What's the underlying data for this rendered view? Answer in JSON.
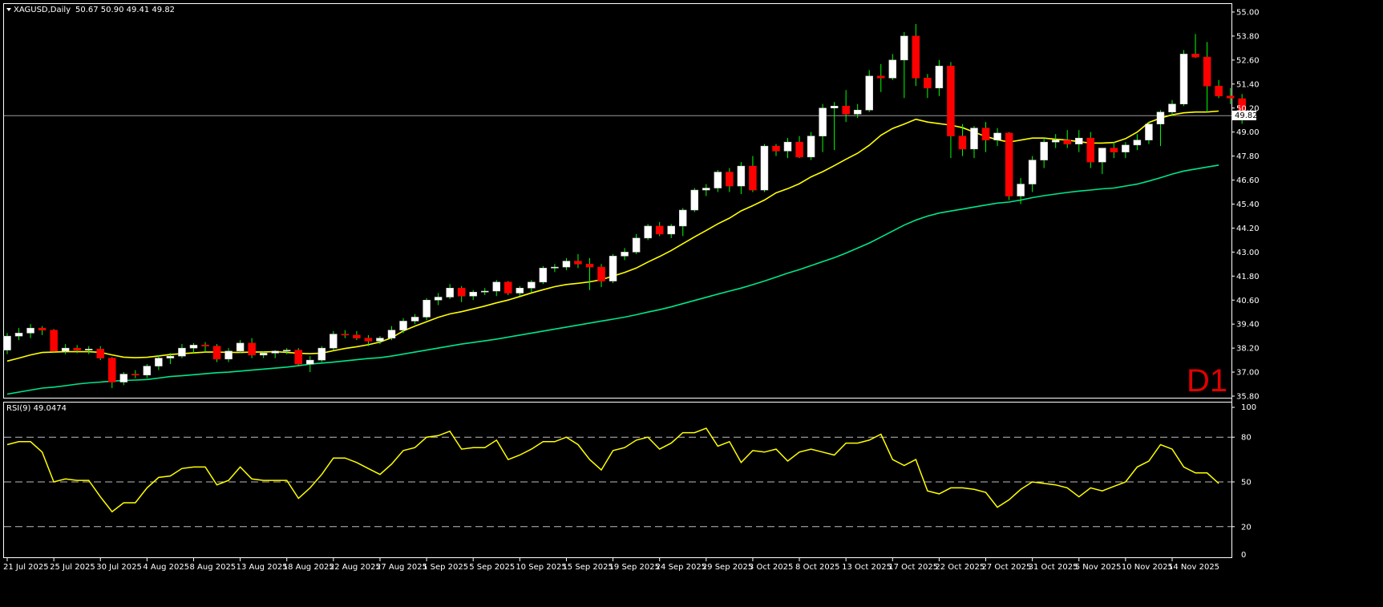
{
  "chart_data": [
    {
      "type": "candlestick",
      "symbol_title": "XAGUSD,Daily",
      "ohlc_header": "50.67 50.90 49.41 49.82",
      "timeframe_label": "D1",
      "current_price": "49.82",
      "price_axis_ticks": [
        "55.00",
        "53.80",
        "52.60",
        "51.40",
        "50.20",
        "49.00",
        "47.80",
        "46.60",
        "45.40",
        "44.20",
        "43.00",
        "41.80",
        "40.60",
        "39.40",
        "38.20",
        "37.00",
        "35.80"
      ],
      "ylim": [
        35.8,
        55.0
      ],
      "date_ticks": [
        "21 Jul 2025",
        "25 Jul 2025",
        "30 Jul 2025",
        "4 Aug 2025",
        "8 Aug 2025",
        "13 Aug 2025",
        "18 Aug 2025",
        "22 Aug 2025",
        "27 Aug 2025",
        "1 Sep 2025",
        "5 Sep 2025",
        "10 Sep 2025",
        "15 Sep 2025",
        "19 Sep 2025",
        "24 Sep 2025",
        "29 Sep 2025",
        "3 Oct 2025",
        "8 Oct 2025",
        "13 Oct 2025",
        "17 Oct 2025",
        "22 Oct 2025",
        "27 Oct 2025",
        "31 Oct 2025",
        "5 Nov 2025",
        "10 Nov 2025",
        "14 Nov 2025"
      ],
      "date_tick_bar_index": [
        0,
        4,
        8,
        12,
        16,
        20,
        24,
        28,
        32,
        36,
        40,
        44,
        48,
        52,
        56,
        60,
        64,
        68,
        72,
        76,
        80,
        84,
        88,
        92,
        96,
        100
      ],
      "bull_color": "#ffffff",
      "bear_color": "#ff0000",
      "wick_color": "#00ff00",
      "candles": [
        [
          38.1,
          38.95,
          37.9,
          38.8
        ],
        [
          38.8,
          39.2,
          38.6,
          38.95
        ],
        [
          38.95,
          39.4,
          38.7,
          39.2
        ],
        [
          39.2,
          39.3,
          38.85,
          39.1
        ],
        [
          39.1,
          39.15,
          37.95,
          38.05
        ],
        [
          38.05,
          38.4,
          37.9,
          38.2
        ],
        [
          38.2,
          38.35,
          37.95,
          38.1
        ],
        [
          38.1,
          38.3,
          37.9,
          38.15
        ],
        [
          38.15,
          38.3,
          37.6,
          37.7
        ],
        [
          37.7,
          37.75,
          36.2,
          36.5
        ],
        [
          36.5,
          37.0,
          36.35,
          36.9
        ],
        [
          36.9,
          37.1,
          36.7,
          36.85
        ],
        [
          36.85,
          37.4,
          36.7,
          37.3
        ],
        [
          37.3,
          37.85,
          37.1,
          37.7
        ],
        [
          37.7,
          37.95,
          37.4,
          37.8
        ],
        [
          37.8,
          38.4,
          37.7,
          38.2
        ],
        [
          38.2,
          38.45,
          37.95,
          38.35
        ],
        [
          38.35,
          38.5,
          38.0,
          38.3
        ],
        [
          38.3,
          38.4,
          37.5,
          37.65
        ],
        [
          37.65,
          38.2,
          37.5,
          38.05
        ],
        [
          38.05,
          38.6,
          37.95,
          38.45
        ],
        [
          38.45,
          38.7,
          37.7,
          37.85
        ],
        [
          37.85,
          38.05,
          37.7,
          37.95
        ],
        [
          37.95,
          38.1,
          37.7,
          38.05
        ],
        [
          38.05,
          38.2,
          37.9,
          38.1
        ],
        [
          38.1,
          38.2,
          37.3,
          37.4
        ],
        [
          37.4,
          37.8,
          37.0,
          37.6
        ],
        [
          37.6,
          38.3,
          37.5,
          38.2
        ],
        [
          38.2,
          39.05,
          38.1,
          38.9
        ],
        [
          38.9,
          39.1,
          38.7,
          38.85
        ],
        [
          38.85,
          39.05,
          38.6,
          38.7
        ],
        [
          38.7,
          38.85,
          38.3,
          38.55
        ],
        [
          38.55,
          38.8,
          38.4,
          38.7
        ],
        [
          38.7,
          39.3,
          38.6,
          39.1
        ],
        [
          39.1,
          39.7,
          38.95,
          39.55
        ],
        [
          39.55,
          39.9,
          39.4,
          39.75
        ],
        [
          39.75,
          40.7,
          39.6,
          40.6
        ],
        [
          40.6,
          40.95,
          40.35,
          40.75
        ],
        [
          40.75,
          41.4,
          40.65,
          41.2
        ],
        [
          41.2,
          41.3,
          40.5,
          40.8
        ],
        [
          40.8,
          41.1,
          40.6,
          41.0
        ],
        [
          41.0,
          41.2,
          40.85,
          41.05
        ],
        [
          41.05,
          41.6,
          40.8,
          41.5
        ],
        [
          41.5,
          41.55,
          40.85,
          40.95
        ],
        [
          40.95,
          41.3,
          40.8,
          41.2
        ],
        [
          41.2,
          41.6,
          41.0,
          41.5
        ],
        [
          41.5,
          42.3,
          41.4,
          42.2
        ],
        [
          42.2,
          42.4,
          42.0,
          42.25
        ],
        [
          42.25,
          42.7,
          42.1,
          42.55
        ],
        [
          42.55,
          42.9,
          42.2,
          42.4
        ],
        [
          42.4,
          42.7,
          41.1,
          42.25
        ],
        [
          42.25,
          42.4,
          41.25,
          41.55
        ],
        [
          41.55,
          42.9,
          41.45,
          42.8
        ],
        [
          42.8,
          43.2,
          42.6,
          43.0
        ],
        [
          43.0,
          43.9,
          42.9,
          43.7
        ],
        [
          43.7,
          44.4,
          43.6,
          44.3
        ],
        [
          44.3,
          44.5,
          43.8,
          43.9
        ],
        [
          43.9,
          44.4,
          43.7,
          44.3
        ],
        [
          44.3,
          45.2,
          43.8,
          45.1
        ],
        [
          45.1,
          46.2,
          45.0,
          46.1
        ],
        [
          46.1,
          46.4,
          45.8,
          46.2
        ],
        [
          46.2,
          47.1,
          46.0,
          47.0
        ],
        [
          47.0,
          47.2,
          46.0,
          46.3
        ],
        [
          46.3,
          47.5,
          45.9,
          47.3
        ],
        [
          47.3,
          47.8,
          46.0,
          46.1
        ],
        [
          46.1,
          48.4,
          46.0,
          48.3
        ],
        [
          48.3,
          48.4,
          47.8,
          48.05
        ],
        [
          48.05,
          48.7,
          47.7,
          48.5
        ],
        [
          48.5,
          48.8,
          47.7,
          47.75
        ],
        [
          47.75,
          49.0,
          47.6,
          48.8
        ],
        [
          48.8,
          50.4,
          48.0,
          50.2
        ],
        [
          50.2,
          50.5,
          48.1,
          50.3
        ],
        [
          50.3,
          51.1,
          49.5,
          49.9
        ],
        [
          49.9,
          50.4,
          49.7,
          50.1
        ],
        [
          50.1,
          52.1,
          50.0,
          51.8
        ],
        [
          51.8,
          52.4,
          51.0,
          51.7
        ],
        [
          51.7,
          52.9,
          51.6,
          52.6
        ],
        [
          52.6,
          54.0,
          50.7,
          53.8
        ],
        [
          53.8,
          54.4,
          51.3,
          51.7
        ],
        [
          51.7,
          51.9,
          50.7,
          51.2
        ],
        [
          51.2,
          52.6,
          50.8,
          52.3
        ],
        [
          52.3,
          52.5,
          47.7,
          48.8
        ],
        [
          48.8,
          49.4,
          47.8,
          48.15
        ],
        [
          48.15,
          49.3,
          47.7,
          49.2
        ],
        [
          49.2,
          49.5,
          48.0,
          48.6
        ],
        [
          48.6,
          49.2,
          48.3,
          48.95
        ],
        [
          48.95,
          49.0,
          45.6,
          45.8
        ],
        [
          45.8,
          46.7,
          45.4,
          46.4
        ],
        [
          46.4,
          47.8,
          46.0,
          47.6
        ],
        [
          47.6,
          48.7,
          47.2,
          48.5
        ],
        [
          48.5,
          48.9,
          48.2,
          48.6
        ],
        [
          48.6,
          49.1,
          48.2,
          48.4
        ],
        [
          48.4,
          49.1,
          48.0,
          48.7
        ],
        [
          48.7,
          49.0,
          47.2,
          47.5
        ],
        [
          47.5,
          48.2,
          46.9,
          48.2
        ],
        [
          48.2,
          48.5,
          47.7,
          48.0
        ],
        [
          48.0,
          48.5,
          47.7,
          48.35
        ],
        [
          48.35,
          48.9,
          48.1,
          48.6
        ],
        [
          48.6,
          49.5,
          48.4,
          49.4
        ],
        [
          49.4,
          50.1,
          48.3,
          50.0
        ],
        [
          50.0,
          50.6,
          49.8,
          50.4
        ],
        [
          50.4,
          53.1,
          50.3,
          52.9
        ],
        [
          52.9,
          53.9,
          52.7,
          52.75
        ],
        [
          52.75,
          53.5,
          50.0,
          51.3
        ],
        [
          51.3,
          51.6,
          50.7,
          50.8
        ],
        [
          50.8,
          51.2,
          50.4,
          50.7
        ],
        [
          50.67,
          50.9,
          49.41,
          49.82
        ]
      ],
      "series": [
        {
          "name": "",
          "color": "#ffff00",
          "values": [
            37.55,
            37.7,
            37.86,
            37.98,
            38.0,
            38.02,
            38.02,
            38.02,
            37.99,
            37.86,
            37.75,
            37.72,
            37.74,
            37.81,
            37.88,
            37.92,
            37.96,
            38.0,
            38.0,
            37.99,
            37.98,
            38.0,
            38.01,
            38.02,
            37.99,
            37.94,
            37.92,
            37.95,
            38.07,
            38.18,
            38.27,
            38.37,
            38.5,
            38.72,
            39.06,
            39.3,
            39.52,
            39.74,
            39.91,
            40.02,
            40.16,
            40.3,
            40.46,
            40.6,
            40.78,
            40.96,
            41.12,
            41.27,
            41.38,
            41.44,
            41.51,
            41.62,
            41.8,
            41.98,
            42.2,
            42.5,
            42.78,
            43.08,
            43.42,
            43.76,
            44.08,
            44.41,
            44.7,
            45.06,
            45.32,
            45.6,
            45.96,
            46.17,
            46.42,
            46.76,
            47.02,
            47.32,
            47.64,
            47.94,
            48.34,
            48.84,
            49.18,
            49.4,
            49.64,
            49.5,
            49.42,
            49.35,
            49.22,
            49.0,
            48.78,
            48.62,
            48.5,
            48.6,
            48.7,
            48.7,
            48.64,
            48.6,
            48.52,
            48.45,
            48.45,
            48.48,
            48.67,
            49.0,
            49.48,
            49.7,
            49.86,
            49.96,
            50.0,
            50.0,
            50.05
          ]
        },
        {
          "name": "",
          "color": "#00e68a",
          "values": [
            35.9,
            36.0,
            36.1,
            36.2,
            36.25,
            36.32,
            36.4,
            36.46,
            36.5,
            36.55,
            36.58,
            36.6,
            36.63,
            36.7,
            36.78,
            36.82,
            36.87,
            36.92,
            36.97,
            37.0,
            37.05,
            37.1,
            37.15,
            37.2,
            37.25,
            37.32,
            37.4,
            37.45,
            37.5,
            37.56,
            37.62,
            37.68,
            37.72,
            37.8,
            37.9,
            38.0,
            38.1,
            38.2,
            38.3,
            38.4,
            38.48,
            38.56,
            38.65,
            38.75,
            38.85,
            38.95,
            39.05,
            39.15,
            39.25,
            39.35,
            39.45,
            39.55,
            39.65,
            39.75,
            39.87,
            40.0,
            40.12,
            40.26,
            40.42,
            40.58,
            40.74,
            40.9,
            41.05,
            41.2,
            41.37,
            41.55,
            41.75,
            41.95,
            42.12,
            42.32,
            42.52,
            42.72,
            42.95,
            43.2,
            43.45,
            43.75,
            44.05,
            44.35,
            44.6,
            44.8,
            44.95,
            45.05,
            45.15,
            45.25,
            45.35,
            45.45,
            45.5,
            45.6,
            45.72,
            45.82,
            45.9,
            45.98,
            46.05,
            46.1,
            46.16,
            46.2,
            46.3,
            46.4,
            46.55,
            46.72,
            46.9,
            47.05,
            47.15,
            47.25,
            47.35
          ]
        }
      ]
    },
    {
      "type": "line",
      "indicator_label": "RSI(9) 49.0474",
      "ylim": [
        0,
        100
      ],
      "levels": [
        80,
        50,
        20
      ],
      "axis_ticks": [
        "100",
        "80",
        "50",
        "20",
        "0"
      ],
      "series": [
        {
          "name": "",
          "color": "#ffff00",
          "values": [
            75,
            77,
            77,
            70,
            50,
            52,
            51,
            51,
            40,
            30,
            36,
            36,
            46,
            53,
            54,
            59,
            60,
            60,
            48,
            51,
            60,
            52,
            51,
            51,
            51,
            39,
            46,
            55,
            66,
            66,
            63,
            59,
            55,
            62,
            71,
            73,
            80,
            81,
            84,
            72,
            73,
            73,
            78,
            65,
            68,
            72,
            77,
            77,
            80,
            75,
            65,
            58,
            71,
            73,
            78,
            80,
            72,
            76,
            83,
            83,
            86,
            74,
            77,
            63,
            71,
            70,
            72,
            64,
            70,
            72,
            70,
            68,
            76,
            76,
            78,
            82,
            65,
            61,
            65,
            44,
            42,
            46,
            46,
            45,
            43,
            33,
            38,
            45,
            50,
            49,
            48,
            46,
            40,
            46,
            44,
            47,
            50,
            60,
            64,
            75,
            72,
            60,
            56,
            56,
            49
          ]
        }
      ]
    }
  ]
}
